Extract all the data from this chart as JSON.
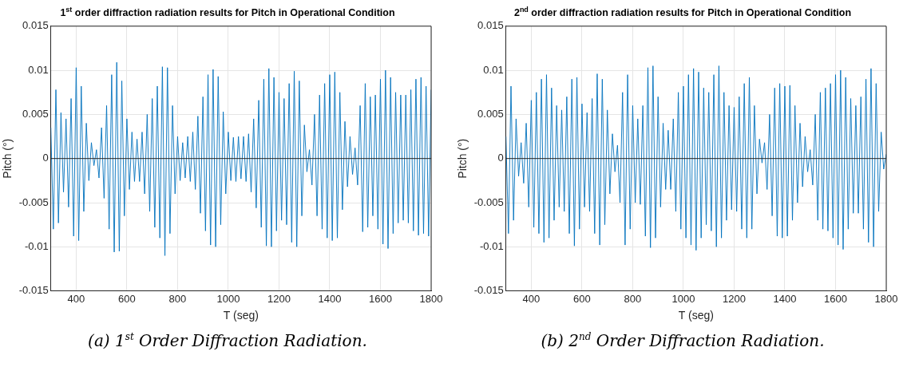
{
  "chart_data": [
    {
      "type": "line",
      "title": "1$^{st}$ order diffraction radiation results for Pitch in Operational Condition",
      "xlabel": "T (seg)",
      "ylabel": "Pitch (°)",
      "xlim": [
        300,
        1800
      ],
      "xticks": [
        400,
        600,
        800,
        1000,
        1200,
        1400,
        1600,
        1800
      ],
      "ylim": [
        -0.015,
        0.015
      ],
      "yticks": [
        -0.015,
        -0.01,
        -0.005,
        0,
        0.005,
        0.01,
        0.015
      ],
      "grid": true,
      "legend": false,
      "marker": "none",
      "line_style": "solid",
      "ref_lines": [
        {
          "axis": "y",
          "value": 0,
          "color": "#262626"
        }
      ],
      "annotations": [
        "(a) 1$^{st}$ Order Diffraction Radiation."
      ],
      "x": [
        300,
        310,
        320,
        330,
        340,
        350,
        360,
        370,
        380,
        390,
        400,
        410,
        420,
        430,
        440,
        450,
        460,
        470,
        480,
        490,
        500,
        510,
        520,
        530,
        540,
        550,
        560,
        570,
        580,
        590,
        600,
        610,
        620,
        630,
        640,
        650,
        660,
        670,
        680,
        690,
        700,
        710,
        720,
        730,
        740,
        750,
        760,
        770,
        780,
        790,
        800,
        810,
        820,
        830,
        840,
        850,
        860,
        870,
        880,
        890,
        900,
        910,
        920,
        930,
        940,
        950,
        960,
        970,
        980,
        990,
        1000,
        1010,
        1020,
        1030,
        1040,
        1050,
        1060,
        1070,
        1080,
        1090,
        1100,
        1110,
        1120,
        1130,
        1140,
        1150,
        1160,
        1170,
        1180,
        1190,
        1200,
        1210,
        1220,
        1230,
        1240,
        1250,
        1260,
        1270,
        1280,
        1290,
        1300,
        1310,
        1320,
        1330,
        1340,
        1350,
        1360,
        1370,
        1380,
        1390,
        1400,
        1410,
        1420,
        1430,
        1440,
        1450,
        1460,
        1470,
        1480,
        1490,
        1500,
        1510,
        1520,
        1530,
        1540,
        1550,
        1560,
        1570,
        1580,
        1590,
        1600,
        1610,
        1620,
        1630,
        1640,
        1650,
        1660,
        1670,
        1680,
        1690,
        1700,
        1710,
        1720,
        1730,
        1740,
        1750,
        1760,
        1770,
        1780,
        1790,
        1800
      ],
      "series": [
        {
          "color": "#0072bd",
          "values": [
            0.0035,
            -0.008,
            0.0078,
            -0.0073,
            0.0052,
            -0.0038,
            0.0045,
            -0.0055,
            0.0068,
            -0.0088,
            0.0103,
            -0.0093,
            0.0082,
            -0.006,
            0.004,
            -0.0025,
            0.0018,
            -0.0008,
            0.001,
            -0.0022,
            0.0035,
            -0.0045,
            0.006,
            -0.008,
            0.0095,
            -0.0106,
            0.0109,
            -0.0105,
            0.0088,
            -0.0065,
            0.0045,
            -0.0035,
            0.003,
            -0.0026,
            0.0022,
            -0.0026,
            0.003,
            -0.004,
            0.005,
            -0.006,
            0.0068,
            -0.0078,
            0.0082,
            -0.009,
            0.0104,
            -0.011,
            0.0103,
            -0.0085,
            0.006,
            -0.004,
            0.0025,
            -0.0025,
            0.0018,
            -0.0022,
            0.0025,
            -0.0026,
            0.003,
            -0.0035,
            0.0048,
            -0.0062,
            0.007,
            -0.0082,
            0.0095,
            -0.0098,
            0.0101,
            -0.01,
            0.0093,
            -0.0075,
            0.0053,
            -0.004,
            0.003,
            -0.0025,
            0.0024,
            -0.0026,
            0.0025,
            -0.0023,
            0.0025,
            -0.0026,
            0.0028,
            -0.0038,
            0.0045,
            -0.0056,
            0.0066,
            -0.0078,
            0.009,
            -0.0099,
            0.0102,
            -0.01,
            0.0092,
            -0.0082,
            0.0075,
            -0.007,
            0.0068,
            -0.0075,
            0.0085,
            -0.0095,
            0.0099,
            -0.01,
            0.0088,
            -0.0065,
            0.0038,
            -0.0015,
            0.001,
            -0.003,
            0.005,
            -0.0065,
            0.0072,
            -0.008,
            0.0085,
            -0.009,
            0.0095,
            -0.0093,
            0.0098,
            -0.009,
            0.0075,
            -0.0058,
            0.0042,
            -0.0032,
            0.0025,
            -0.0018,
            0.0012,
            -0.003,
            0.006,
            -0.0083,
            0.0085,
            -0.0078,
            0.007,
            -0.0065,
            0.0072,
            -0.008,
            0.009,
            -0.0097,
            0.01,
            -0.0102,
            0.0092,
            -0.0085,
            0.0075,
            -0.0073,
            0.0072,
            -0.007,
            0.0072,
            -0.0073,
            0.0078,
            -0.0082,
            0.009,
            -0.0087,
            0.0092,
            -0.0085,
            0.0082,
            -0.0088,
            0.0078
          ]
        }
      ]
    },
    {
      "type": "line",
      "title": "2$^{nd}$ order diffraction radiation results for Pitch in Operational Condition",
      "xlabel": "T (seg)",
      "ylabel": "Pitch (°)",
      "xlim": [
        300,
        1800
      ],
      "xticks": [
        400,
        600,
        800,
        1000,
        1200,
        1400,
        1600,
        1800
      ],
      "ylim": [
        -0.015,
        0.015
      ],
      "yticks": [
        -0.015,
        -0.01,
        -0.005,
        0,
        0.005,
        0.01,
        0.015
      ],
      "grid": true,
      "legend": false,
      "marker": "none",
      "line_style": "solid",
      "ref_lines": [
        {
          "axis": "y",
          "value": 0,
          "color": "#262626"
        }
      ],
      "annotations": [
        "(b) 2$^{nd}$ Order Diffraction Radiation."
      ],
      "x": [
        300,
        310,
        320,
        330,
        340,
        350,
        360,
        370,
        380,
        390,
        400,
        410,
        420,
        430,
        440,
        450,
        460,
        470,
        480,
        490,
        500,
        510,
        520,
        530,
        540,
        550,
        560,
        570,
        580,
        590,
        600,
        610,
        620,
        630,
        640,
        650,
        660,
        670,
        680,
        690,
        700,
        710,
        720,
        730,
        740,
        750,
        760,
        770,
        780,
        790,
        800,
        810,
        820,
        830,
        840,
        850,
        860,
        870,
        880,
        890,
        900,
        910,
        920,
        930,
        940,
        950,
        960,
        970,
        980,
        990,
        1000,
        1010,
        1020,
        1030,
        1040,
        1050,
        1060,
        1070,
        1080,
        1090,
        1100,
        1110,
        1120,
        1130,
        1140,
        1150,
        1160,
        1170,
        1180,
        1190,
        1200,
        1210,
        1220,
        1230,
        1240,
        1250,
        1260,
        1270,
        1280,
        1290,
        1300,
        1310,
        1320,
        1330,
        1340,
        1350,
        1360,
        1370,
        1380,
        1390,
        1400,
        1410,
        1420,
        1430,
        1440,
        1450,
        1460,
        1470,
        1480,
        1490,
        1500,
        1510,
        1520,
        1530,
        1540,
        1550,
        1560,
        1570,
        1580,
        1590,
        1600,
        1610,
        1620,
        1630,
        1640,
        1650,
        1660,
        1670,
        1680,
        1690,
        1700,
        1710,
        1720,
        1730,
        1740,
        1750,
        1760,
        1770,
        1780,
        1790,
        1800
      ],
      "series": [
        {
          "color": "#0072bd",
          "values": [
            0.0025,
            -0.0085,
            0.0082,
            -0.007,
            0.0045,
            -0.002,
            0.0018,
            -0.0028,
            0.004,
            -0.0055,
            0.0066,
            -0.0078,
            0.0075,
            -0.0085,
            0.009,
            -0.0095,
            0.0095,
            -0.009,
            0.008,
            -0.007,
            0.006,
            -0.0055,
            0.0055,
            -0.006,
            0.007,
            -0.0085,
            0.009,
            -0.0099,
            0.0092,
            -0.008,
            0.0062,
            -0.0055,
            0.0052,
            -0.006,
            0.0068,
            -0.0085,
            0.0096,
            -0.0098,
            0.009,
            -0.0075,
            0.0055,
            -0.004,
            0.0028,
            -0.0015,
            0.0015,
            -0.005,
            0.0075,
            -0.0098,
            0.0095,
            -0.008,
            0.006,
            -0.005,
            0.0045,
            -0.0052,
            0.006,
            -0.0088,
            0.0103,
            -0.0101,
            0.0105,
            -0.009,
            0.007,
            -0.0055,
            0.004,
            -0.0035,
            0.0032,
            -0.0035,
            0.0045,
            -0.006,
            0.0075,
            -0.008,
            0.0082,
            -0.009,
            0.0095,
            -0.0098,
            0.0102,
            -0.0104,
            0.0098,
            -0.009,
            0.008,
            -0.0075,
            0.0075,
            -0.0082,
            0.0095,
            -0.01,
            0.0105,
            -0.009,
            0.0075,
            -0.007,
            0.006,
            -0.0058,
            0.0058,
            -0.006,
            0.007,
            -0.008,
            0.0085,
            -0.009,
            0.0092,
            -0.008,
            0.006,
            -0.004,
            0.0022,
            -0.0005,
            0.0018,
            -0.0035,
            0.005,
            -0.0065,
            0.008,
            -0.0088,
            0.0085,
            -0.009,
            0.0082,
            -0.0088,
            0.0083,
            -0.007,
            0.006,
            -0.005,
            0.004,
            -0.0032,
            0.0025,
            -0.0015,
            0.001,
            -0.003,
            0.005,
            -0.007,
            0.0075,
            -0.008,
            0.008,
            -0.0082,
            0.0085,
            -0.009,
            0.0095,
            -0.0098,
            0.01,
            -0.0103,
            0.0092,
            -0.008,
            0.0068,
            -0.0062,
            0.006,
            -0.0062,
            0.007,
            -0.008,
            0.009,
            -0.0095,
            0.0102,
            -0.01,
            0.0085,
            -0.006,
            0.003,
            -0.0012,
            0.0005
          ]
        }
      ]
    }
  ]
}
